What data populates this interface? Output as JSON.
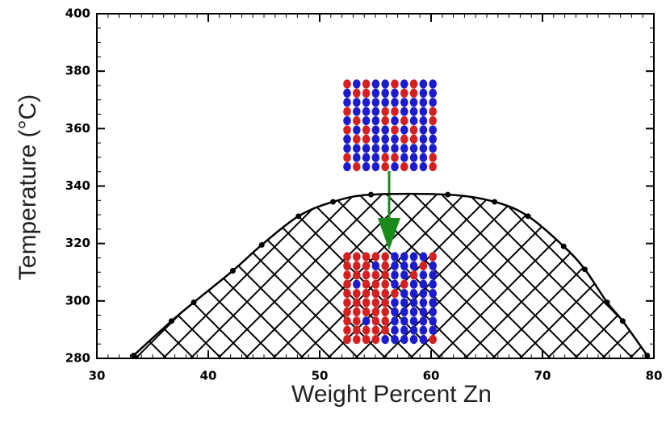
{
  "chart_data": {
    "type": "line",
    "x_label": "Weight Percent Zn",
    "y_label": "Temperature (°C)",
    "series": [
      {
        "color": "#000000",
        "x": [
          33.3,
          36.7,
          38.7,
          42.2,
          44.8,
          48.1,
          51.2,
          54.6,
          61.5,
          65.7,
          68.7,
          71.9,
          73.8,
          75.8,
          77.2,
          79.4
        ],
        "values": [
          281,
          293,
          299.5,
          310.5,
          319.5,
          329.5,
          334.5,
          337,
          337,
          334.5,
          329.5,
          319,
          311,
          299.5,
          293,
          281
        ]
      }
    ],
    "xlim": [
      30,
      80
    ],
    "xticks": [
      30,
      40,
      50,
      60,
      70,
      80
    ],
    "ylim": [
      280,
      400
    ],
    "yticks": [
      280,
      300,
      320,
      340,
      360,
      380,
      400
    ]
  }
}
